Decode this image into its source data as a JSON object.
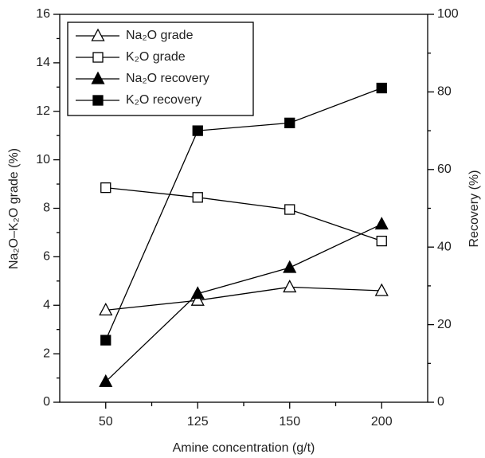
{
  "chart_data": {
    "type": "line",
    "categories": [
      "50",
      "125",
      "150",
      "200"
    ],
    "xlabel": "Amine concentration (g/t)",
    "ylabel": "Na₂O–K₂O grade (%)",
    "y2label": "Recovery (%)",
    "ylim": [
      0,
      16
    ],
    "yticks": [
      0,
      2,
      4,
      6,
      8,
      10,
      12,
      14,
      16
    ],
    "y2lim": [
      0,
      100
    ],
    "y2ticks": [
      0,
      20,
      40,
      60,
      80,
      100
    ],
    "grid": false,
    "legend": "upper left",
    "series": [
      {
        "name": "Na₂O grade",
        "color": "#000000",
        "marker": "triangle",
        "filled": false,
        "values": [
          3.8,
          4.2,
          4.75,
          4.6
        ]
      },
      {
        "name": "K₂O grade",
        "color": "#000000",
        "marker": "square",
        "filled": false,
        "values": [
          8.85,
          8.45,
          7.95,
          6.65
        ]
      },
      {
        "name": "Na₂O recovery",
        "color": "#000000",
        "marker": "triangle",
        "filled": true,
        "axis": "y2",
        "values": [
          5.3,
          28,
          34.7,
          45.9
        ]
      },
      {
        "name": "K₂O recovery",
        "color": "#000000",
        "marker": "square",
        "filled": true,
        "axis": "y2",
        "values": [
          16,
          70,
          72,
          81
        ]
      }
    ]
  }
}
